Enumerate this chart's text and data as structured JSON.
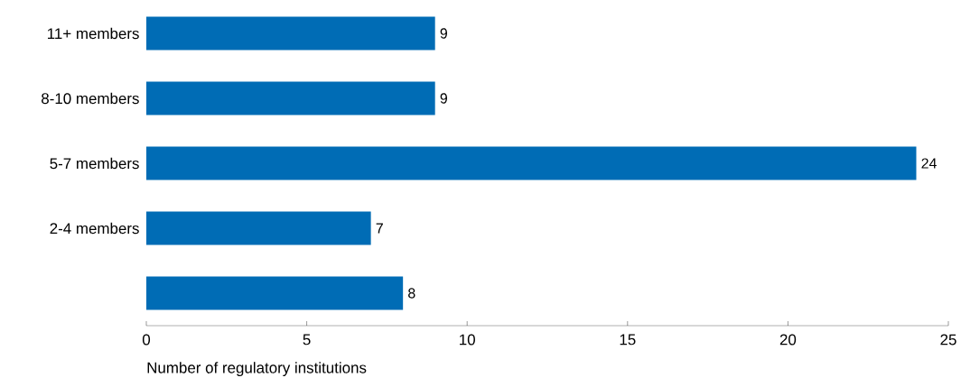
{
  "chart_data": {
    "type": "bar",
    "orientation": "horizontal",
    "categories": [
      "11+ members",
      "8-10 members",
      "5-7 members",
      "2-4 members",
      null
    ],
    "values": [
      9,
      9,
      24,
      7,
      8
    ],
    "color": "#006cb5",
    "xlabel": "Number of regulatory institutions",
    "xlim": [
      0,
      25
    ],
    "xticks": [
      0,
      5,
      10,
      15,
      20,
      25
    ],
    "data_labels": true
  }
}
